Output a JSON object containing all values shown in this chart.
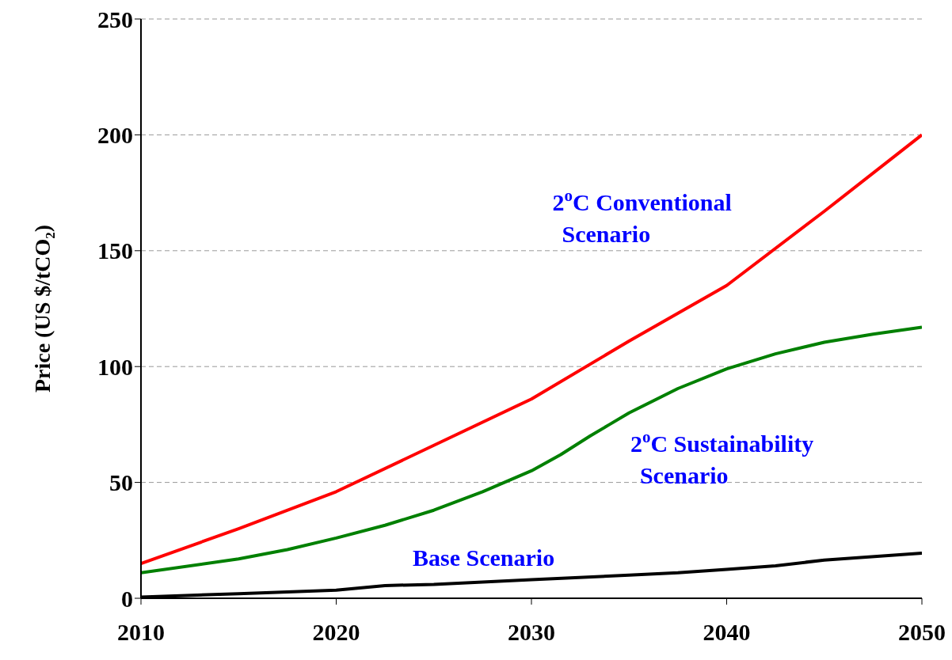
{
  "chart_data": {
    "type": "line",
    "ylabel": "Price (US $/tCO₂)",
    "xlim": [
      2010,
      2050
    ],
    "xticks": [
      2010,
      2020,
      2030,
      2040,
      2050
    ],
    "ylim": [
      0,
      250
    ],
    "yticks": [
      0,
      50,
      100,
      150,
      200,
      250
    ],
    "grid": "y",
    "legend": false,
    "marker": "none",
    "line_style": "solid",
    "series": [
      {
        "name": "2$^{o}$C Conventional Scenario",
        "color": "#ff0000",
        "x": [
          2010,
          2015,
          2020,
          2025,
          2030,
          2035,
          2040,
          2045,
          2050
        ],
        "values": [
          15,
          30,
          46,
          66,
          86,
          111,
          135,
          167,
          200
        ]
      },
      {
        "name": "2$^{o}$C Sustainability Scenario",
        "color": "#008000",
        "x": [
          2010,
          2015,
          2017.5,
          2020,
          2022.5,
          2025,
          2027.5,
          2030,
          2031.5,
          2033,
          2034,
          2035,
          2037.5,
          2040,
          2042.5,
          2045,
          2047.5,
          2050
        ],
        "values": [
          11,
          17,
          21,
          26,
          31.5,
          38,
          46,
          55,
          62,
          70,
          75,
          80,
          90.5,
          99,
          105.5,
          110.5,
          114,
          117
        ]
      },
      {
        "name": "Base Scenario",
        "color": "#000000",
        "x": [
          2010,
          2015,
          2020,
          2022.5,
          2025,
          2030,
          2035,
          2037.5,
          2040,
          2042.5,
          2045,
          2050
        ],
        "values": [
          0.5,
          2,
          3.5,
          5.5,
          6,
          8,
          10,
          11,
          12.5,
          14,
          16.5,
          19.5
        ]
      }
    ]
  }
}
